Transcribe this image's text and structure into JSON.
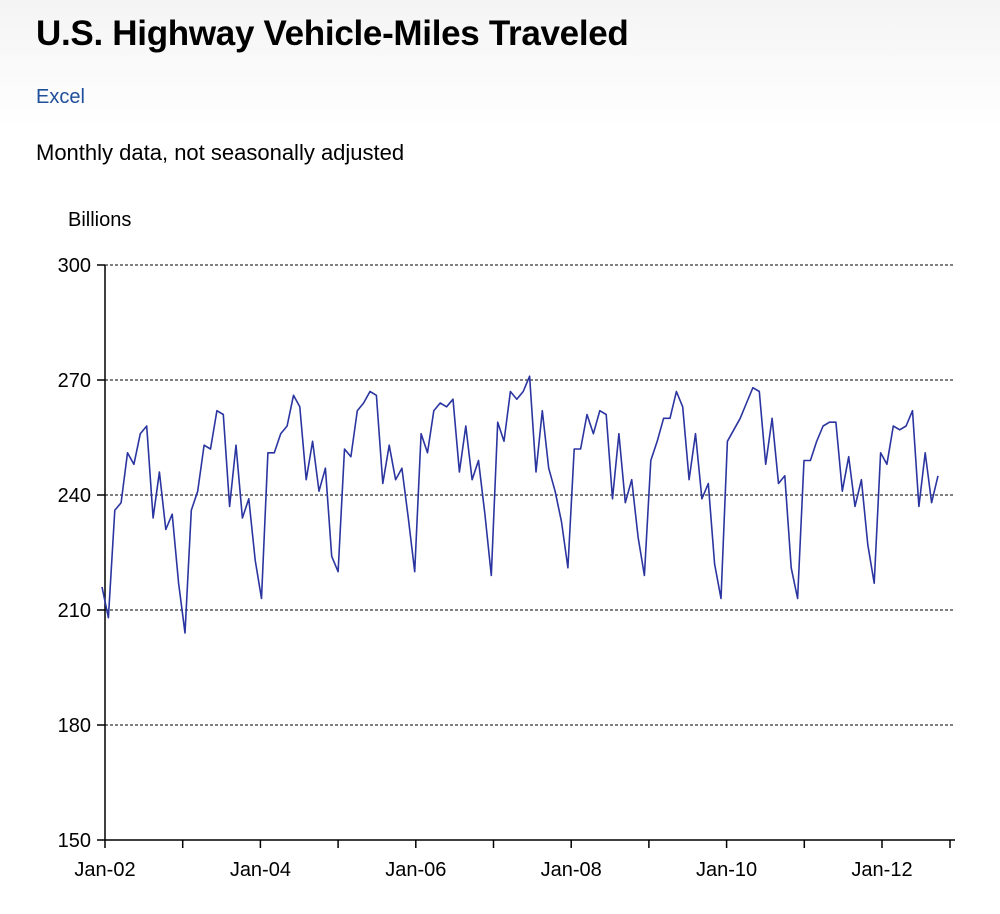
{
  "page": {
    "title": "U.S. Highway Vehicle-Miles Traveled",
    "excel_link": "Excel",
    "subtitle": "Monthly data, not seasonally adjusted"
  },
  "chart_data": {
    "type": "line",
    "ylabel": "Billions",
    "ylim": [
      150,
      300
    ],
    "yticks": [
      150,
      180,
      210,
      240,
      270,
      300
    ],
    "xtick_labels": [
      "Jan-02",
      "Jan-04",
      "Jan-06",
      "Jan-08",
      "Jan-10",
      "Jan-12"
    ],
    "x_start": "2002-01",
    "x_end": "2012-12",
    "grid": "horizontal-dashed",
    "line_color": "#2b35a0",
    "series": [
      {
        "values": [
          216,
          208,
          236,
          238,
          251,
          248,
          256,
          258,
          234,
          246,
          231,
          235,
          217,
          204,
          236,
          241,
          253,
          252,
          262,
          261,
          237,
          253,
          234,
          239,
          223,
          213,
          251,
          251,
          256,
          258,
          266,
          263,
          244,
          254,
          241,
          247,
          224,
          220,
          252,
          250,
          262,
          264,
          267,
          266,
          243,
          253,
          244,
          247,
          234,
          220,
          256,
          251,
          262,
          264,
          263,
          265,
          246,
          258,
          244,
          249,
          235,
          219,
          259,
          254,
          267,
          265,
          267,
          271,
          246,
          262,
          247,
          241,
          233,
          221,
          252,
          252,
          261,
          256,
          262,
          261,
          239,
          256,
          238,
          244,
          229,
          219,
          249,
          254,
          260,
          260,
          267,
          263,
          244,
          256,
          239,
          243,
          222,
          213,
          254,
          257,
          260,
          264,
          268,
          267,
          248,
          260,
          243,
          245,
          221,
          213,
          249,
          249,
          254,
          258,
          259,
          259,
          241,
          250,
          237,
          244,
          227,
          217,
          251,
          248,
          258,
          257,
          258,
          262,
          237,
          251,
          238,
          245
        ]
      }
    ]
  }
}
